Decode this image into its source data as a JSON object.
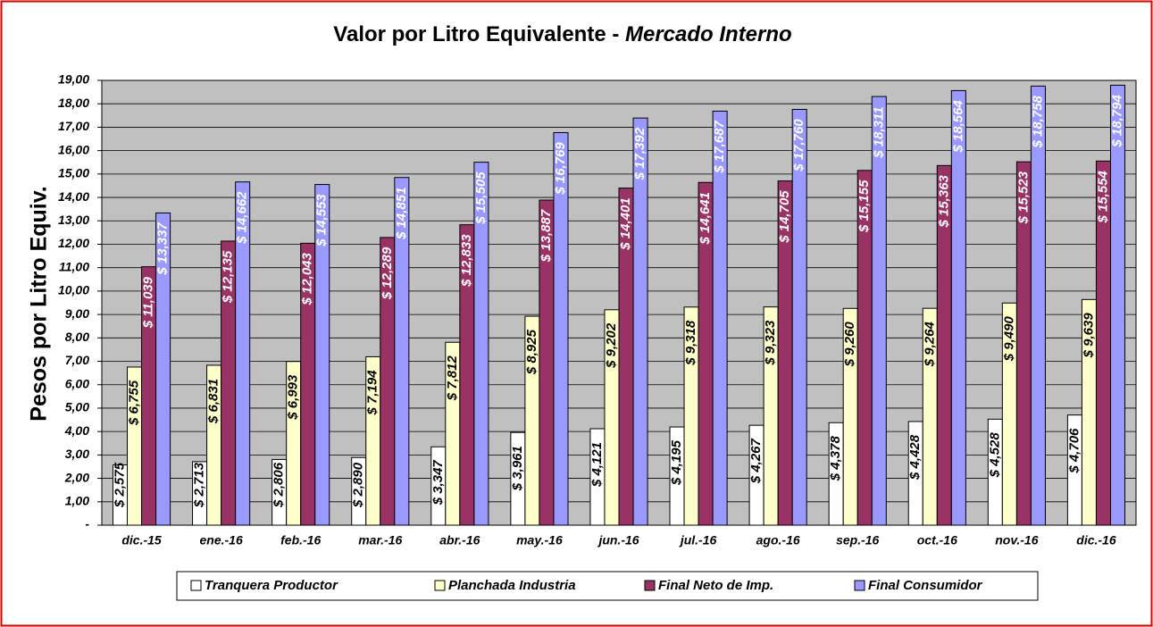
{
  "chart_data": {
    "type": "bar",
    "title": "Valor por Litro Equivalente - ",
    "title_emphasis": "Mercado Interno",
    "y_label": "Pesos por Litro Equiv.",
    "categories": [
      "dic.-15",
      "ene.-16",
      "feb.-16",
      "mar.-16",
      "abr.-16",
      "may.-16",
      "jun.-16",
      "jul.-16",
      "ago.-16",
      "sep.-16",
      "oct.-16",
      "nov.-16",
      "dic.-16"
    ],
    "series": [
      {
        "name": "Tranquera Productor",
        "color": "#ffffff",
        "label_color": "#000000",
        "values": [
          2.575,
          2.713,
          2.806,
          2.89,
          3.347,
          3.961,
          4.121,
          4.195,
          4.267,
          4.378,
          4.428,
          4.528,
          4.706
        ],
        "value_labels": [
          "$ 2,575",
          "$ 2,713",
          "$ 2,806",
          "$ 2,890",
          "$ 3,347",
          "$ 3,961",
          "$ 4,121",
          "$ 4,195",
          "$ 4,267",
          "$ 4,378",
          "$ 4,428",
          "$ 4,528",
          "$ 4,706"
        ]
      },
      {
        "name": "Planchada Industria",
        "color": "#ffffcc",
        "label_color": "#000000",
        "values": [
          6.755,
          6.831,
          6.993,
          7.194,
          7.812,
          8.925,
          9.202,
          9.318,
          9.323,
          9.26,
          9.264,
          9.49,
          9.639
        ],
        "value_labels": [
          "$ 6,755",
          "$ 6,831",
          "$ 6,993",
          "$ 7,194",
          "$ 7,812",
          "$ 8,925",
          "$ 9,202",
          "$ 9,318",
          "$ 9,323",
          "$ 9,260",
          "$ 9,264",
          "$ 9,490",
          "$ 9,639"
        ]
      },
      {
        "name": "Final Neto de Imp.",
        "color": "#993366",
        "label_color": "#ffffff",
        "values": [
          11.039,
          12.135,
          12.043,
          12.289,
          12.833,
          13.887,
          14.401,
          14.641,
          14.705,
          15.155,
          15.363,
          15.523,
          15.554
        ],
        "value_labels": [
          "$ 11,039",
          "$ 12,135",
          "$ 12,043",
          "$ 12,289",
          "$ 12,833",
          "$ 13,887",
          "$ 14,401",
          "$ 14,641",
          "$ 14,705",
          "$ 15,155",
          "$ 15,363",
          "$ 15,523",
          "$ 15,554"
        ]
      },
      {
        "name": "Final Consumidor",
        "color": "#9999ff",
        "label_color": "#ffffff",
        "values": [
          13.337,
          14.662,
          14.553,
          14.851,
          15.505,
          16.769,
          17.392,
          17.687,
          17.76,
          18.311,
          18.564,
          18.758,
          18.794
        ],
        "value_labels": [
          "$ 13,337",
          "$ 14,662",
          "$ 14,553",
          "$ 14,851",
          "$ 15,505",
          "$ 16,769",
          "$ 17,392",
          "$ 17,687",
          "$ 17,760",
          "$ 18,311",
          "$ 18,564",
          "$ 18,758",
          "$ 18,794"
        ]
      }
    ],
    "ylim": [
      0,
      19
    ],
    "yticks": [
      {
        "value": 0,
        "label": "-"
      },
      {
        "value": 1,
        "label": "1,00"
      },
      {
        "value": 2,
        "label": "2,00"
      },
      {
        "value": 3,
        "label": "3,00"
      },
      {
        "value": 4,
        "label": "4,00"
      },
      {
        "value": 5,
        "label": "5,00"
      },
      {
        "value": 6,
        "label": "6,00"
      },
      {
        "value": 7,
        "label": "7,00"
      },
      {
        "value": 8,
        "label": "8,00"
      },
      {
        "value": 9,
        "label": "9,00"
      },
      {
        "value": 10,
        "label": "10,00"
      },
      {
        "value": 11,
        "label": "11,00"
      },
      {
        "value": 12,
        "label": "12,00"
      },
      {
        "value": 13,
        "label": "13,00"
      },
      {
        "value": 14,
        "label": "14,00"
      },
      {
        "value": 15,
        "label": "15,00"
      },
      {
        "value": 16,
        "label": "16,00"
      },
      {
        "value": 17,
        "label": "17,00"
      },
      {
        "value": 18,
        "label": "18,00"
      },
      {
        "value": 19,
        "label": "19,00"
      }
    ],
    "grid": true,
    "plot_background": "#c0c0c0",
    "legend": "bottom"
  }
}
